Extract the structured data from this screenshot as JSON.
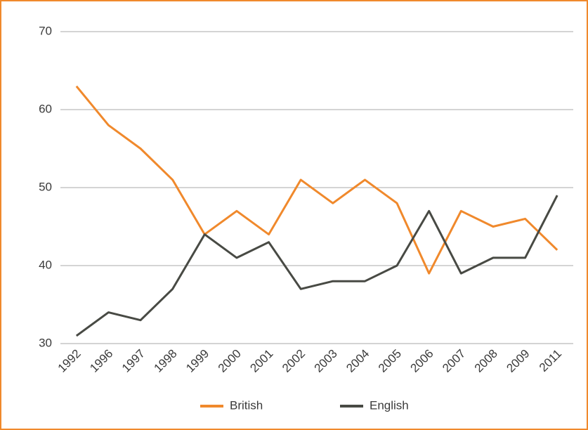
{
  "chart_data": {
    "type": "line",
    "categories": [
      "1992",
      "1996",
      "1997",
      "1998",
      "1999",
      "2000",
      "2001",
      "2002",
      "2003",
      "2004",
      "2005",
      "2006",
      "2007",
      "2008",
      "2009",
      "2011"
    ],
    "series": [
      {
        "name": "British",
        "color": "#f0892c",
        "values": [
          63,
          58,
          55,
          51,
          44,
          47,
          44,
          51,
          48,
          51,
          48,
          39,
          47,
          45,
          46,
          42
        ]
      },
      {
        "name": "English",
        "color": "#484a44",
        "values": [
          31,
          34,
          33,
          37,
          44,
          41,
          43,
          37,
          38,
          38,
          40,
          47,
          39,
          41,
          41,
          49
        ]
      }
    ],
    "ylim": [
      30,
      70
    ],
    "yticks": [
      30,
      40,
      50,
      60,
      70
    ],
    "grid": true,
    "legend": "bottom"
  }
}
